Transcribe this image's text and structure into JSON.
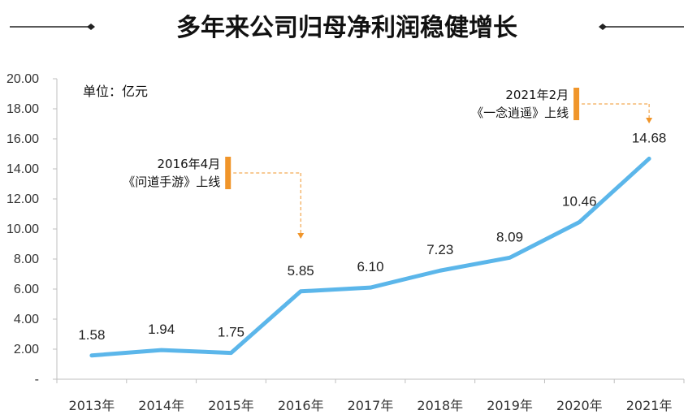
{
  "chart_data": {
    "type": "line",
    "title": "多年来公司归母净利润稳健增长",
    "unit_label": "单位：亿元",
    "categories": [
      "2013年",
      "2014年",
      "2015年",
      "2016年",
      "2017年",
      "2018年",
      "2019年",
      "2020年",
      "2021年"
    ],
    "series": [
      {
        "values": [
          1.58,
          1.94,
          1.75,
          5.85,
          6.1,
          7.23,
          8.09,
          10.46,
          14.68
        ]
      }
    ],
    "data_labels": [
      "1.58",
      "1.94",
      "1.75",
      "5.85",
      "6.10",
      "7.23",
      "8.09",
      "10.46",
      "14.68"
    ],
    "ylim": [
      0,
      20
    ],
    "y_ticks": [
      "-",
      "2.00",
      "4.00",
      "6.00",
      "8.00",
      "10.00",
      "12.00",
      "14.00",
      "16.00",
      "18.00",
      "20.00"
    ],
    "grid": false,
    "line_color": "#5BB6EA",
    "marker_color": "#F0952A",
    "annotations": [
      {
        "category": "2016年",
        "line1": "2016年4月",
        "line2": "《问道手游》上线"
      },
      {
        "category": "2021年",
        "line1": "2021年2月",
        "line2": "《一念逍遥》上线"
      }
    ]
  }
}
